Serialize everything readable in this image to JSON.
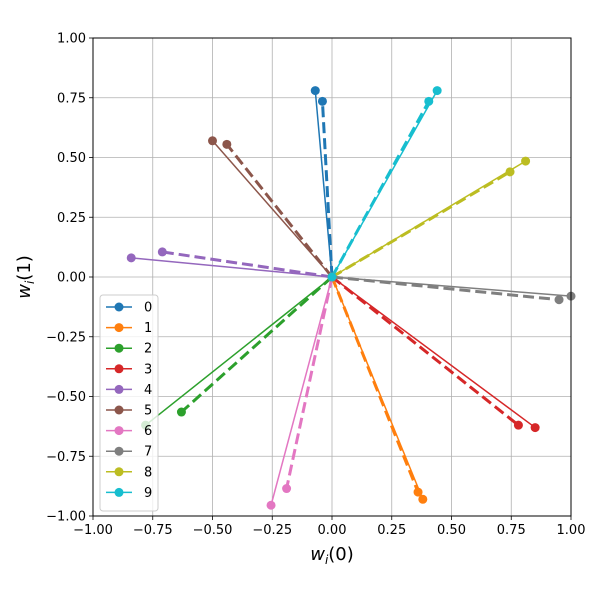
{
  "chart_data": {
    "type": "line",
    "xlabel_main": "w",
    "xlabel_sub": "i",
    "xlabel_arg": "(0)",
    "ylabel_main": "w",
    "ylabel_sub": "i",
    "ylabel_arg": "(1)",
    "xlim": [
      -1.0,
      1.0
    ],
    "ylim": [
      -1.0,
      1.0
    ],
    "xticks": [
      -1.0,
      -0.75,
      -0.5,
      -0.25,
      0.0,
      0.25,
      0.5,
      0.75,
      1.0
    ],
    "yticks": [
      -1.0,
      -0.75,
      -0.5,
      -0.25,
      0.0,
      0.25,
      0.5,
      0.75,
      1.0
    ],
    "xtick_labels": [
      "−1.00",
      "−0.75",
      "−0.50",
      "−0.25",
      "0.00",
      "0.25",
      "0.50",
      "0.75",
      "1.00"
    ],
    "ytick_labels": [
      "−1.00",
      "−0.75",
      "−0.50",
      "−0.25",
      "0.00",
      "0.25",
      "0.50",
      "0.75",
      "1.00"
    ],
    "grid": true,
    "legend_position": "lower-left",
    "series": [
      {
        "name": "0",
        "color": "#1f77b4",
        "solid_end": [
          -0.07,
          0.78
        ],
        "dashed_end": [
          -0.04,
          0.735
        ]
      },
      {
        "name": "1",
        "color": "#ff7f0e",
        "solid_end": [
          0.38,
          -0.93
        ],
        "dashed_end": [
          0.36,
          -0.9
        ]
      },
      {
        "name": "2",
        "color": "#2ca02c",
        "solid_end": [
          -0.78,
          -0.62
        ],
        "dashed_end": [
          -0.63,
          -0.565
        ]
      },
      {
        "name": "3",
        "color": "#d62728",
        "solid_end": [
          0.85,
          -0.63
        ],
        "dashed_end": [
          0.78,
          -0.62
        ]
      },
      {
        "name": "4",
        "color": "#9467bd",
        "solid_end": [
          -0.84,
          0.08
        ],
        "dashed_end": [
          -0.71,
          0.105
        ]
      },
      {
        "name": "5",
        "color": "#8c564b",
        "solid_end": [
          -0.5,
          0.57
        ],
        "dashed_end": [
          -0.44,
          0.555
        ]
      },
      {
        "name": "6",
        "color": "#e377c2",
        "solid_end": [
          -0.255,
          -0.955
        ],
        "dashed_end": [
          -0.19,
          -0.885
        ]
      },
      {
        "name": "7",
        "color": "#7f7f7f",
        "solid_end": [
          1.0,
          -0.08
        ],
        "dashed_end": [
          0.95,
          -0.095
        ]
      },
      {
        "name": "8",
        "color": "#bcbd22",
        "solid_end": [
          0.81,
          0.485
        ],
        "dashed_end": [
          0.745,
          0.44
        ]
      },
      {
        "name": "9",
        "color": "#17becf",
        "solid_end": [
          0.44,
          0.78
        ],
        "dashed_end": [
          0.405,
          0.735
        ]
      }
    ]
  }
}
